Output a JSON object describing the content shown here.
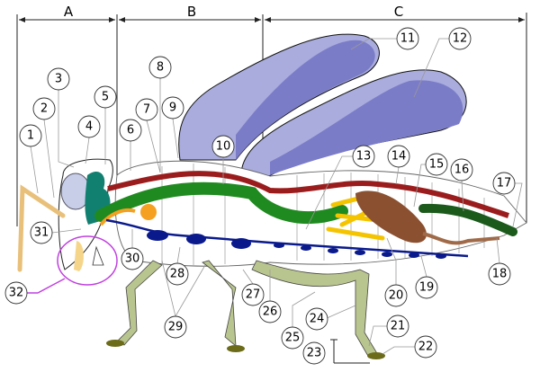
{
  "sections": {
    "A": "A",
    "B": "B",
    "C": "C"
  },
  "labels": {
    "l1": "1",
    "l2": "2",
    "l3": "3",
    "l4": "4",
    "l5": "5",
    "l6": "6",
    "l7": "7",
    "l8": "8",
    "l9": "9",
    "l10": "10",
    "l11": "11",
    "l12": "12",
    "l13": "13",
    "l14": "14",
    "l15": "15",
    "l16": "16",
    "l17": "17",
    "l18": "18",
    "l19": "19",
    "l20": "20",
    "l21": "21",
    "l22": "22",
    "l23": "23",
    "l24": "24",
    "l25": "25",
    "l26": "26",
    "l27": "27",
    "l28": "28",
    "l29": "29",
    "l30": "30",
    "l31": "31",
    "l32": "32"
  },
  "colors": {
    "wing": "#a9acdd",
    "wing_dark": "#7b7cc8",
    "heart": "#9b1c1c",
    "gut": "#1f8a1f",
    "nerve": "#0a1a8c",
    "leg": "#b9c58f",
    "claw": "#6b6b1a",
    "salivary": "#f5a020",
    "malpighian": "#f5c400",
    "ovary": "#8b5030",
    "mouthparts_circle": "#c040e0",
    "head_gland": "#118070"
  }
}
